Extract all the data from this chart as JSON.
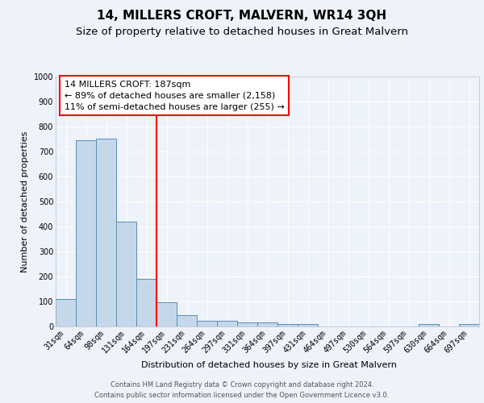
{
  "title": "14, MILLERS CROFT, MALVERN, WR14 3QH",
  "subtitle": "Size of property relative to detached houses in Great Malvern",
  "xlabel": "Distribution of detached houses by size in Great Malvern",
  "ylabel": "Number of detached properties",
  "bar_color": "#c5d8ea",
  "bar_edge_color": "#5a8db5",
  "background_color": "#eef2fa",
  "grid_color": "#ffffff",
  "categories": [
    "31sqm",
    "64sqm",
    "98sqm",
    "131sqm",
    "164sqm",
    "197sqm",
    "231sqm",
    "264sqm",
    "297sqm",
    "331sqm",
    "364sqm",
    "397sqm",
    "431sqm",
    "464sqm",
    "497sqm",
    "530sqm",
    "564sqm",
    "597sqm",
    "630sqm",
    "664sqm",
    "697sqm"
  ],
  "values": [
    110,
    745,
    752,
    420,
    190,
    96,
    46,
    22,
    22,
    15,
    15,
    10,
    10,
    0,
    0,
    0,
    0,
    0,
    10,
    0,
    10
  ],
  "redline_index": 4.5,
  "ylim": [
    0,
    1000
  ],
  "yticks": [
    0,
    100,
    200,
    300,
    400,
    500,
    600,
    700,
    800,
    900,
    1000
  ],
  "annotation_title": "14 MILLERS CROFT: 187sqm",
  "annotation_line1": "← 89% of detached houses are smaller (2,158)",
  "annotation_line2": "11% of semi-detached houses are larger (255) →",
  "footer1": "Contains HM Land Registry data © Crown copyright and database right 2024.",
  "footer2": "Contains public sector information licensed under the Open Government Licence v3.0.",
  "title_fontsize": 11,
  "subtitle_fontsize": 9.5,
  "axis_label_fontsize": 8,
  "tick_fontsize": 7,
  "annotation_fontsize": 8,
  "footer_fontsize": 6
}
